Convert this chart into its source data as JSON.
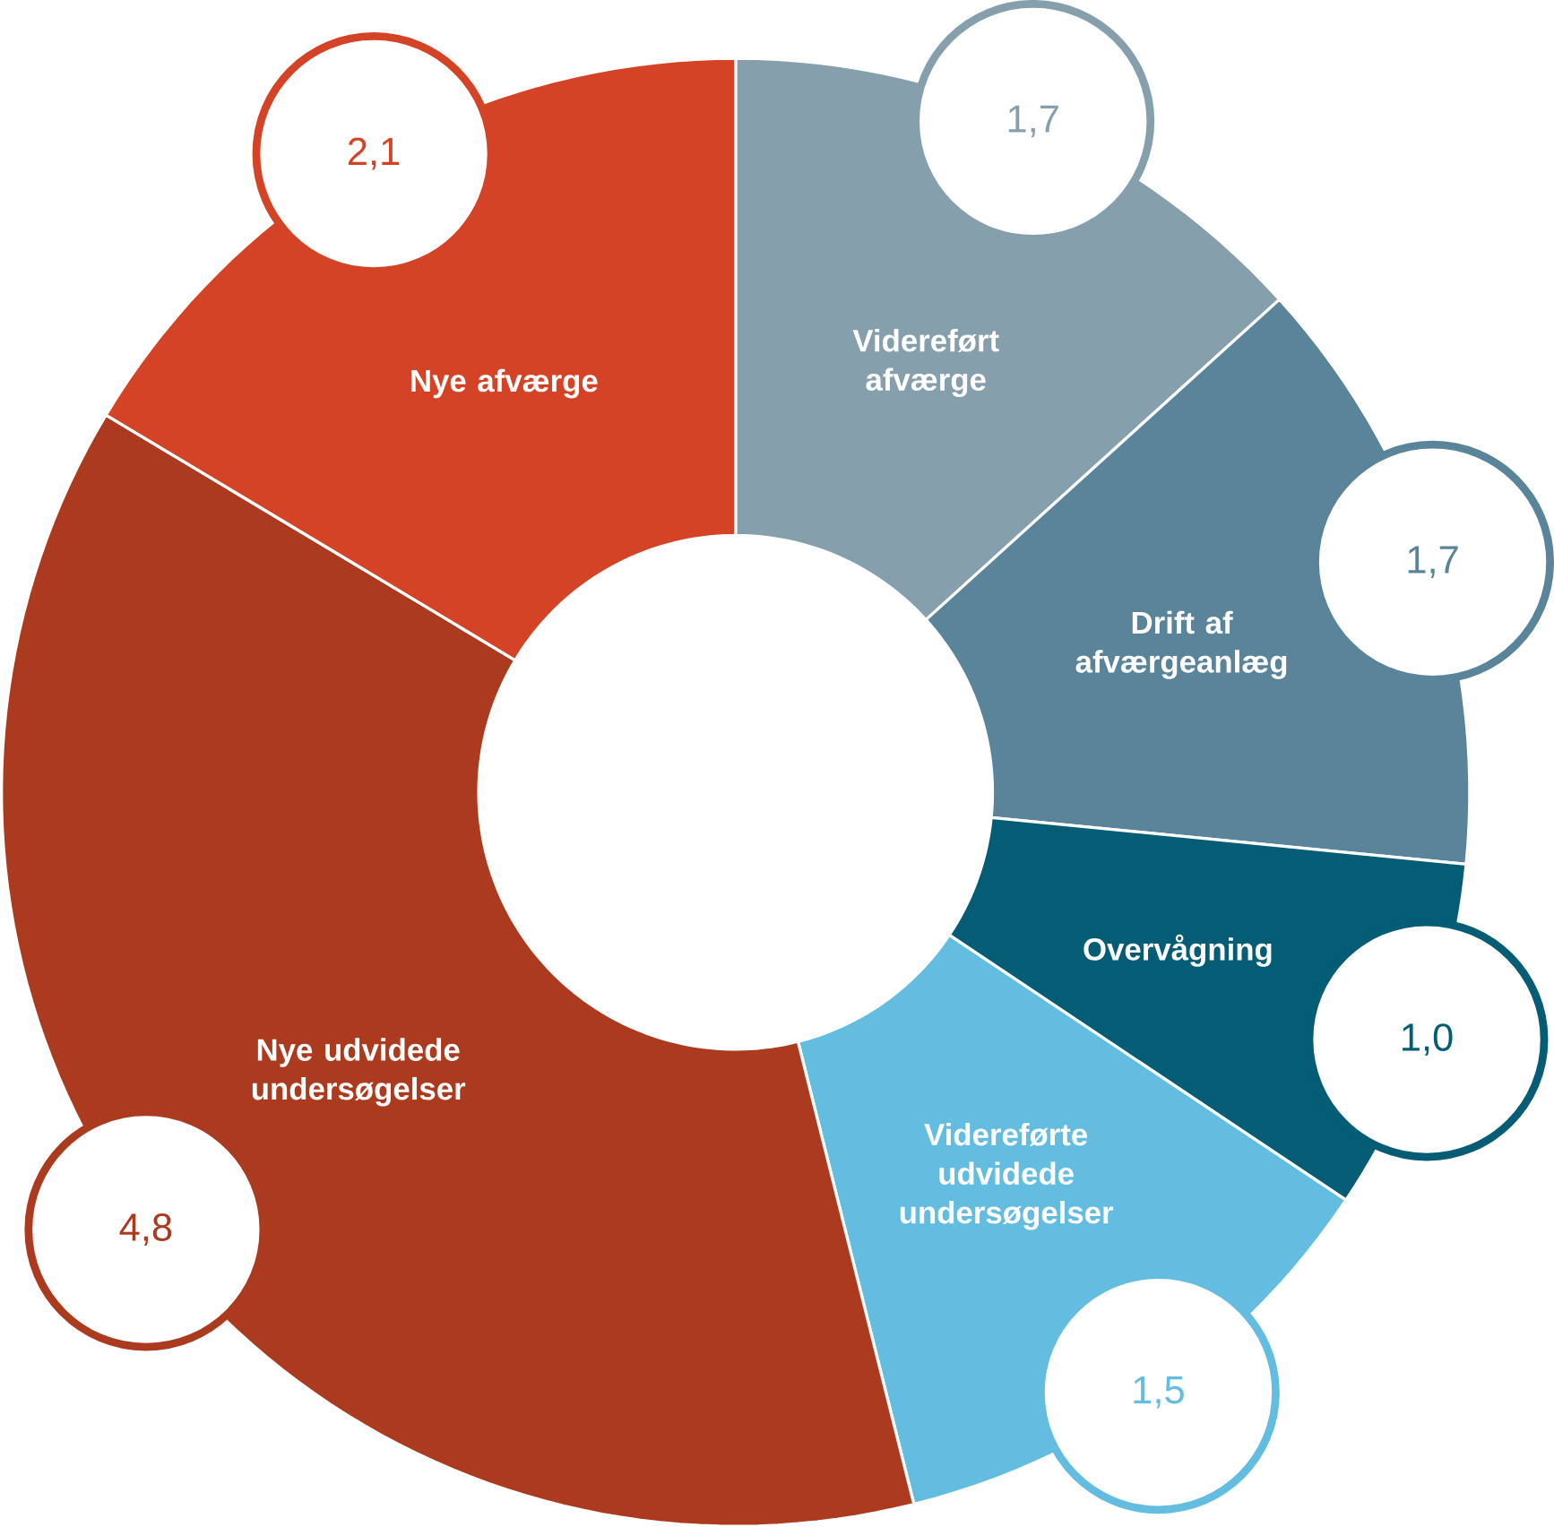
{
  "chart_data": {
    "type": "donut",
    "categories": [
      "Videreført afværge",
      "Drift af afværgeanlæg",
      "Overvågning",
      "Videreførte udvidede undersøgelser",
      "Nye udvidede undersøgelser",
      "Nye afværge"
    ],
    "values": [
      1.7,
      1.7,
      1.0,
      1.5,
      4.8,
      2.1
    ],
    "value_labels": [
      "1,7",
      "1,7",
      "1,0",
      "1,5",
      "4,8",
      "2,1"
    ],
    "colors": [
      "#869fad",
      "#5a8499",
      "#045d75",
      "#63bde0",
      "#ab3a1f",
      "#d44325"
    ]
  }
}
